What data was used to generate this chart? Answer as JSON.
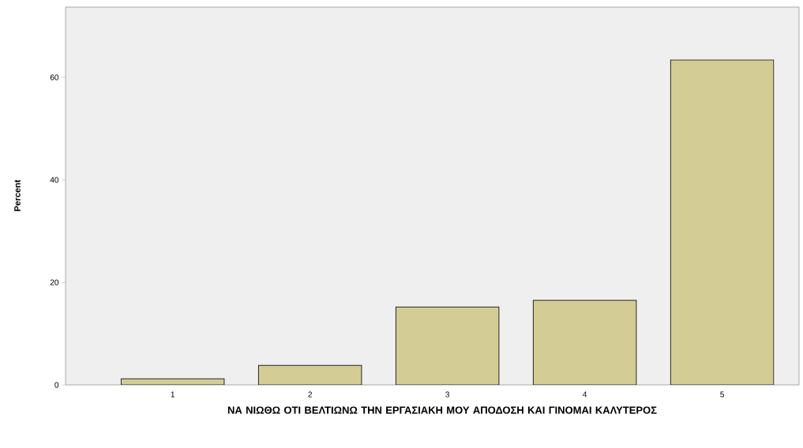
{
  "chart_data": {
    "type": "bar",
    "xlabel": "ΝΑ ΝΙΩΘΩ  ΟΤΙ ΒΕΛΤΙΩΝΩ ΤΗΝ ΕΡΓΑΣΙΑΚΗ ΜΟΥ ΑΠΟΔΟΣΗ ΚΑΙ ΓΙΝΟΜΑΙ ΚΑΛΥΤΕΡΟΣ",
    "ylabel": "Percent",
    "categories": [
      "1",
      "2",
      "3",
      "4",
      "5"
    ],
    "values": [
      1.2,
      3.8,
      15.2,
      16.5,
      63.4
    ],
    "color": "#d3cd95",
    "ylim": [
      0,
      73.7
    ],
    "yticks": [
      0,
      20,
      40,
      60
    ]
  }
}
